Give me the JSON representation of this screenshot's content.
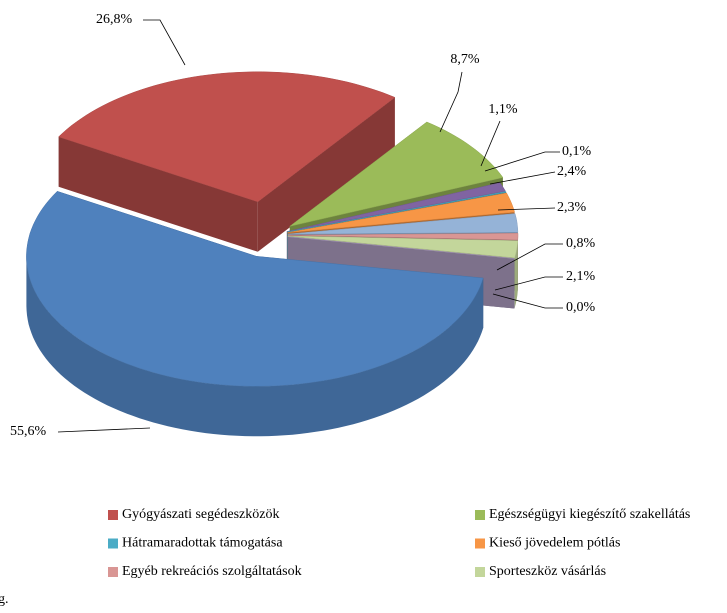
{
  "chart_data": {
    "type": "pie3d",
    "categories": [
      "Gyógyászati segédeszközök",
      "Egészségügyi kiegészítő szakellátás",
      null,
      "Hátramaradottak támogatása",
      "Kieső jövedelem pótlás",
      null,
      "Egyéb rekreációs szolgáltatások",
      "Sporteszköz vásárlás",
      null,
      null
    ],
    "values": [
      26.8,
      8.7,
      1.1,
      0.1,
      2.4,
      2.3,
      0.8,
      2.1,
      0.0,
      55.6
    ],
    "value_labels": [
      "26,8%",
      "8,7%",
      "1,1%",
      "0,1%",
      "2,4%",
      "2,3%",
      "0,8%",
      "2,1%",
      "0,0%",
      "55,6%"
    ],
    "colors": [
      "#c0504d",
      "#9bbb59",
      "#8064a2",
      "#4bacc6",
      "#f79646",
      "#95b3d7",
      "#d99694",
      "#c3d69b",
      "#b3a2c7",
      "#4f81bd"
    ],
    "footnote": "g."
  }
}
